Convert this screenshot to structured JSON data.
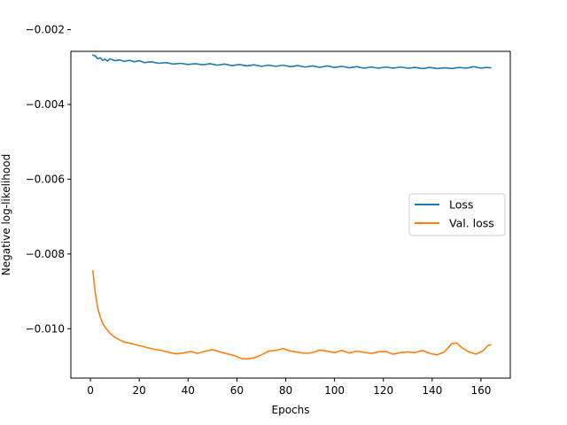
{
  "chart_data": {
    "type": "line",
    "xlabel": "Epochs",
    "ylabel": "Negative log-likelihood",
    "xlim": [
      -8,
      172
    ],
    "ylim": [
      -0.01132,
      -0.00258
    ],
    "x_ticks": [
      0,
      20,
      40,
      60,
      80,
      100,
      120,
      140,
      160
    ],
    "y_ticks": [
      -0.01,
      -0.008,
      -0.006,
      -0.004,
      -0.002
    ],
    "y_tick_labels": [
      "−0.010",
      "−0.008",
      "−0.006",
      "−0.004",
      "−0.002"
    ],
    "grid": false,
    "legend_position": "center-right",
    "series": [
      {
        "name": "Loss",
        "color": "#1f77b4",
        "points": [
          [
            1,
            -0.00268
          ],
          [
            2,
            -0.0027
          ],
          [
            3,
            -0.00278
          ],
          [
            4,
            -0.00275
          ],
          [
            5,
            -0.00282
          ],
          [
            6,
            -0.00279
          ],
          [
            7,
            -0.00284
          ],
          [
            8,
            -0.00278
          ],
          [
            10,
            -0.00283
          ],
          [
            12,
            -0.00281
          ],
          [
            14,
            -0.00285
          ],
          [
            16,
            -0.00282
          ],
          [
            18,
            -0.00286
          ],
          [
            20,
            -0.00283
          ],
          [
            22,
            -0.00288
          ],
          [
            25,
            -0.00286
          ],
          [
            28,
            -0.0029
          ],
          [
            31,
            -0.00288
          ],
          [
            34,
            -0.00292
          ],
          [
            37,
            -0.0029
          ],
          [
            40,
            -0.00293
          ],
          [
            43,
            -0.00291
          ],
          [
            46,
            -0.00294
          ],
          [
            49,
            -0.00291
          ],
          [
            52,
            -0.00295
          ],
          [
            55,
            -0.00292
          ],
          [
            58,
            -0.00296
          ],
          [
            61,
            -0.00293
          ],
          [
            64,
            -0.00297
          ],
          [
            67,
            -0.00294
          ],
          [
            70,
            -0.00298
          ],
          [
            73,
            -0.00295
          ],
          [
            76,
            -0.00298
          ],
          [
            79,
            -0.00295
          ],
          [
            82,
            -0.00299
          ],
          [
            85,
            -0.00296
          ],
          [
            88,
            -0.003
          ],
          [
            91,
            -0.00297
          ],
          [
            94,
            -0.00301
          ],
          [
            97,
            -0.00297
          ],
          [
            100,
            -0.00301
          ],
          [
            103,
            -0.00298
          ],
          [
            106,
            -0.00302
          ],
          [
            109,
            -0.00299
          ],
          [
            112,
            -0.00303
          ],
          [
            115,
            -0.003
          ],
          [
            118,
            -0.00303
          ],
          [
            121,
            -0.003
          ],
          [
            124,
            -0.00303
          ],
          [
            127,
            -0.003
          ],
          [
            130,
            -0.00303
          ],
          [
            133,
            -0.00301
          ],
          [
            136,
            -0.00304
          ],
          [
            139,
            -0.00301
          ],
          [
            142,
            -0.00304
          ],
          [
            145,
            -0.00302
          ],
          [
            148,
            -0.00304
          ],
          [
            151,
            -0.00301
          ],
          [
            154,
            -0.00303
          ],
          [
            157,
            -0.00299
          ],
          [
            160,
            -0.00303
          ],
          [
            162,
            -0.00301
          ],
          [
            164,
            -0.00302
          ]
        ]
      },
      {
        "name": "Val. loss",
        "color": "#ff7f0e",
        "points": [
          [
            1,
            -0.00845
          ],
          [
            2,
            -0.00905
          ],
          [
            3,
            -0.00945
          ],
          [
            4,
            -0.00968
          ],
          [
            5,
            -0.00985
          ],
          [
            6,
            -0.00996
          ],
          [
            8,
            -0.01012
          ],
          [
            10,
            -0.01023
          ],
          [
            12,
            -0.0103
          ],
          [
            14,
            -0.01036
          ],
          [
            17,
            -0.0104
          ],
          [
            20,
            -0.01045
          ],
          [
            23,
            -0.0105
          ],
          [
            26,
            -0.01055
          ],
          [
            29,
            -0.01058
          ],
          [
            32,
            -0.01063
          ],
          [
            35,
            -0.01067
          ],
          [
            38,
            -0.01065
          ],
          [
            41,
            -0.01061
          ],
          [
            44,
            -0.01066
          ],
          [
            47,
            -0.0106
          ],
          [
            50,
            -0.01056
          ],
          [
            53,
            -0.01062
          ],
          [
            56,
            -0.01067
          ],
          [
            59,
            -0.01072
          ],
          [
            62,
            -0.0108
          ],
          [
            64,
            -0.01081
          ],
          [
            67,
            -0.01078
          ],
          [
            70,
            -0.0107
          ],
          [
            73,
            -0.0106
          ],
          [
            76,
            -0.01058
          ],
          [
            79,
            -0.01053
          ],
          [
            82,
            -0.0106
          ],
          [
            85,
            -0.01063
          ],
          [
            88,
            -0.01066
          ],
          [
            91,
            -0.01064
          ],
          [
            94,
            -0.01057
          ],
          [
            97,
            -0.0106
          ],
          [
            100,
            -0.01064
          ],
          [
            103,
            -0.01058
          ],
          [
            106,
            -0.01065
          ],
          [
            109,
            -0.0106
          ],
          [
            112,
            -0.01063
          ],
          [
            115,
            -0.01066
          ],
          [
            118,
            -0.01062
          ],
          [
            121,
            -0.01061
          ],
          [
            124,
            -0.01068
          ],
          [
            127,
            -0.01064
          ],
          [
            130,
            -0.01062
          ],
          [
            133,
            -0.01064
          ],
          [
            136,
            -0.01058
          ],
          [
            139,
            -0.01066
          ],
          [
            142,
            -0.0107
          ],
          [
            145,
            -0.01062
          ],
          [
            148,
            -0.0104
          ],
          [
            150,
            -0.01038
          ],
          [
            152,
            -0.0105
          ],
          [
            155,
            -0.01062
          ],
          [
            158,
            -0.01068
          ],
          [
            161,
            -0.01058
          ],
          [
            163,
            -0.01044
          ],
          [
            164,
            -0.01043
          ]
        ]
      }
    ]
  }
}
